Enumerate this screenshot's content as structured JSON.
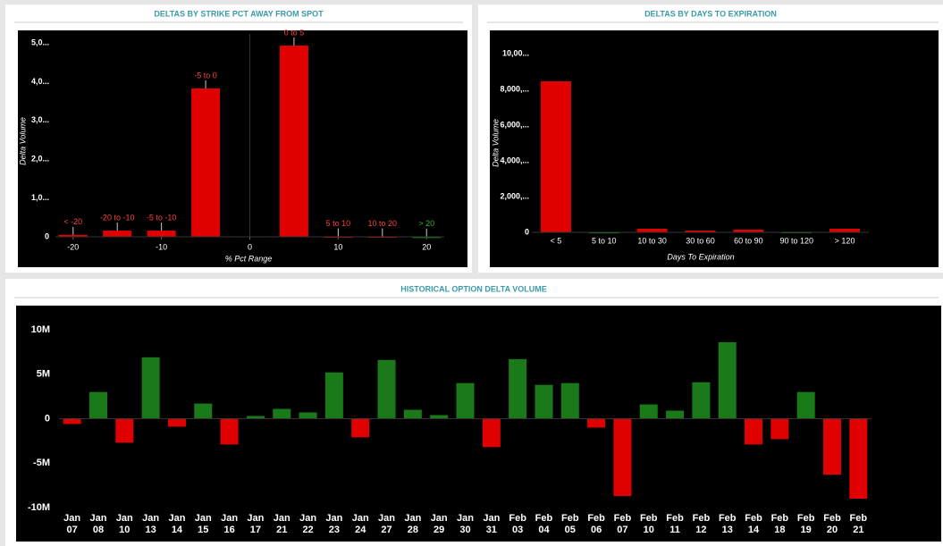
{
  "chart_data": [
    {
      "type": "bar",
      "title": "DELTAS BY STRIKE PCT AWAY FROM SPOT",
      "xlabel": "% Pct Range",
      "ylabel": "Delta Volume",
      "x": [
        -20,
        -15,
        -10,
        -5,
        5,
        10,
        15,
        20
      ],
      "bar_labels": [
        "< -20",
        "-20 to -10",
        "-5 to -10",
        "-5 to 0",
        "0 to 5",
        "5 to 10",
        "10 to 20",
        "> 20"
      ],
      "values": [
        50,
        160,
        160,
        3825,
        4930,
        10,
        10,
        5
      ],
      "colors": [
        "#e00000",
        "#e00000",
        "#e00000",
        "#e00000",
        "#e00000",
        "#e00000",
        "#e00000",
        "#1a8a1a"
      ],
      "xlim": [
        -22,
        22
      ],
      "xticks": [
        -20,
        -10,
        0,
        10,
        20
      ],
      "ylim": [
        0,
        5000
      ],
      "yticks": [
        0,
        {
          "value": 1000,
          "label": "1,0..."
        },
        {
          "value": 2000,
          "label": "2,0..."
        },
        {
          "value": 3000,
          "label": "3,0..."
        },
        {
          "value": 4000,
          "label": "4,0..."
        },
        {
          "value": 5000,
          "label": "5,0..."
        }
      ]
    },
    {
      "type": "bar",
      "title": "DELTAS BY DAYS TO EXPIRATION",
      "xlabel": "Days To Expiration",
      "ylabel": "Delta Volume",
      "categories": [
        "< 5",
        "5 to 10",
        "10 to 30",
        "30 to 60",
        "60 to 90",
        "90 to 120",
        "> 120"
      ],
      "values": [
        8450,
        20,
        200,
        100,
        150,
        30,
        200
      ],
      "colors": [
        "#e00000",
        "#1a8a1a",
        "#e00000",
        "#e00000",
        "#e00000",
        "#1a8a1a",
        "#e00000"
      ],
      "ylim": [
        0,
        10000
      ],
      "yticks": [
        0,
        {
          "value": 2000,
          "label": "2,000,..."
        },
        {
          "value": 4000,
          "label": "4,000,..."
        },
        {
          "value": 6000,
          "label": "6,000,..."
        },
        {
          "value": 8000,
          "label": "8,000,..."
        },
        {
          "value": 10000,
          "label": "10,00..."
        }
      ]
    },
    {
      "type": "bar",
      "title": "HISTORICAL OPTION DELTA VOLUME",
      "categories": [
        "Jan 07",
        "Jan 08",
        "Jan 10",
        "Jan 13",
        "Jan 14",
        "Jan 15",
        "Jan 16",
        "Jan 17",
        "Jan 21",
        "Jan 22",
        "Jan 23",
        "Jan 24",
        "Jan 27",
        "Jan 28",
        "Jan 29",
        "Jan 30",
        "Jan 31",
        "Feb 03",
        "Feb 04",
        "Feb 05",
        "Feb 06",
        "Feb 07",
        "Feb 10",
        "Feb 11",
        "Feb 12",
        "Feb 13",
        "Feb 14",
        "Feb 18",
        "Feb 19",
        "Feb 20",
        "Feb 21"
      ],
      "values": [
        -0.6,
        3.0,
        -2.7,
        6.9,
        -0.9,
        1.7,
        -2.9,
        0.3,
        1.1,
        0.7,
        5.2,
        -2.1,
        6.6,
        1.0,
        0.4,
        4.0,
        -3.2,
        6.7,
        3.8,
        4.0,
        -1.0,
        -8.7,
        1.6,
        0.9,
        4.1,
        8.6,
        -2.9,
        -2.3,
        3.0,
        -6.3,
        -9.0
      ],
      "positive_color": "#1a7a1a",
      "negative_color": "#e00000",
      "ylim": [
        -10,
        10
      ],
      "yticks": [
        {
          "value": -10,
          "label": "-10M"
        },
        {
          "value": -5,
          "label": "-5M"
        },
        0,
        {
          "value": 5,
          "label": "5M"
        },
        {
          "value": 10,
          "label": "10M"
        }
      ]
    }
  ]
}
